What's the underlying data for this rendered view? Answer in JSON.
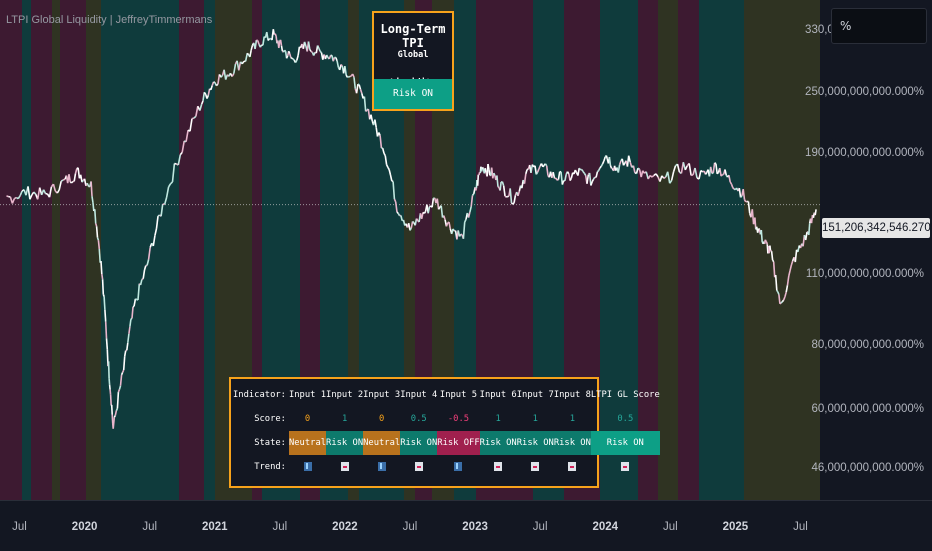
{
  "chart_title": "LTPI Global Liquidity | JeffreyTimmermans",
  "pct_button": "%",
  "price_tag": "151,206,342,546.270%",
  "y_labels": [
    {
      "text": "330,000,000,000.000%",
      "v": 330000000000
    },
    {
      "text": "250,000,000,000.000%",
      "v": 250000000000
    },
    {
      "text": "190,000,000,000.000%",
      "v": 190000000000
    },
    {
      "text": "110,000,000,000.000%",
      "v": 110000000000
    },
    {
      "text": "80,000,000,000.000%",
      "v": 80000000000
    },
    {
      "text": "60,000,000,000.000%",
      "v": 60000000000
    },
    {
      "text": "46,000,000,000.000%",
      "v": 46000000000
    }
  ],
  "x_labels": [
    {
      "text": "Jul",
      "t": 2019.5,
      "year": false
    },
    {
      "text": "2020",
      "t": 2020.0,
      "year": true
    },
    {
      "text": "Jul",
      "t": 2020.5,
      "year": false
    },
    {
      "text": "2021",
      "t": 2021.0,
      "year": true
    },
    {
      "text": "Jul",
      "t": 2021.5,
      "year": false
    },
    {
      "text": "2022",
      "t": 2022.0,
      "year": true
    },
    {
      "text": "Jul",
      "t": 2022.5,
      "year": false
    },
    {
      "text": "2023",
      "t": 2023.0,
      "year": true
    },
    {
      "text": "Jul",
      "t": 2023.5,
      "year": false
    },
    {
      "text": "2024",
      "t": 2024.0,
      "year": true
    },
    {
      "text": "Jul",
      "t": 2024.5,
      "year": false
    },
    {
      "text": "2025",
      "t": 2025.0,
      "year": true
    },
    {
      "text": "Jul",
      "t": 2025.5,
      "year": false
    }
  ],
  "tpi_box": {
    "title": "Long-Term TPI",
    "subtitle": "Global Liquidity",
    "state": "Risk ON"
  },
  "table": {
    "row_labels": {
      "indicator": "Indicator:",
      "score": "Score:",
      "state": "State:",
      "trend": "Trend:"
    },
    "columns": [
      {
        "name": "Input 1",
        "score": "0",
        "state": "Neutral",
        "trend": "up"
      },
      {
        "name": "Input 2",
        "score": "1",
        "state": "Risk ON",
        "trend": "down"
      },
      {
        "name": "Input 3",
        "score": "0",
        "state": "Neutral",
        "trend": "up"
      },
      {
        "name": "Input 4",
        "score": "0.5",
        "state": "Risk ON",
        "trend": "down"
      },
      {
        "name": "Input 5",
        "score": "-0.5",
        "state": "Risk OFF",
        "trend": "up"
      },
      {
        "name": "Input 6",
        "score": "1",
        "state": "Risk ON",
        "trend": "down"
      },
      {
        "name": "Input 7",
        "score": "1",
        "state": "Risk ON",
        "trend": "down"
      },
      {
        "name": "Input 8",
        "score": "1",
        "state": "Risk ON",
        "trend": "down"
      },
      {
        "name": "LTPI GL Score",
        "score": "0.5",
        "state": "Risk ON",
        "trend": "down"
      }
    ]
  },
  "colors": {
    "band_teal": "#0f3b3c",
    "band_maroon": "#3d1a31",
    "band_olive": "#2f3322",
    "accent_orange": "#f7a21b",
    "risk_on": "#0d9f86",
    "risk_off": "#a0204e",
    "neutral": "#b8721d"
  },
  "chart_data": {
    "type": "line",
    "title": "LTPI Global Liquidity | JeffreyTimmermans",
    "x_range": [
      "2019-04",
      "2025-09"
    ],
    "y_scale": "log",
    "ylim": [
      40000000000,
      380000000000
    ],
    "current_value": 151206342546,
    "series": [
      {
        "x": [
          2019.4,
          2019.55,
          2019.7,
          2019.85,
          2019.95,
          2020.05,
          2020.12,
          2020.18,
          2020.22,
          2020.3,
          2020.38,
          2020.48,
          2020.6,
          2020.75,
          2020.9,
          2021.0,
          2021.12,
          2021.25,
          2021.35,
          2021.45,
          2021.52,
          2021.6,
          2021.7,
          2021.8,
          2021.9,
          2022.0,
          2022.1,
          2022.2,
          2022.3,
          2022.4,
          2022.5,
          2022.6,
          2022.7,
          2022.8,
          2022.9,
          2023.0,
          2023.05,
          2023.12,
          2023.2,
          2023.3,
          2023.4,
          2023.5,
          2023.6,
          2023.7,
          2023.8,
          2023.9,
          2024.0,
          2024.08,
          2024.18,
          2024.3,
          2024.45,
          2024.6,
          2024.75,
          2024.85,
          2024.95,
          2025.05,
          2025.15,
          2025.22,
          2025.27,
          2025.35,
          2025.45,
          2025.55,
          2025.62
        ],
        "y": [
          155,
          160,
          158,
          168,
          175,
          165,
          120,
          75,
          55,
          72,
          95,
          115,
          150,
          195,
          240,
          265,
          275,
          295,
          315,
          325,
          305,
          290,
          310,
          300,
          295,
          280,
          255,
          225,
          195,
          150,
          135,
          145,
          155,
          138,
          130,
          160,
          180,
          175,
          165,
          155,
          175,
          180,
          172,
          170,
          175,
          168,
          190,
          178,
          184,
          172,
          168,
          180,
          172,
          180,
          170,
          160,
          140,
          128,
          122,
          95,
          118,
          132,
          148
        ]
      }
    ]
  }
}
